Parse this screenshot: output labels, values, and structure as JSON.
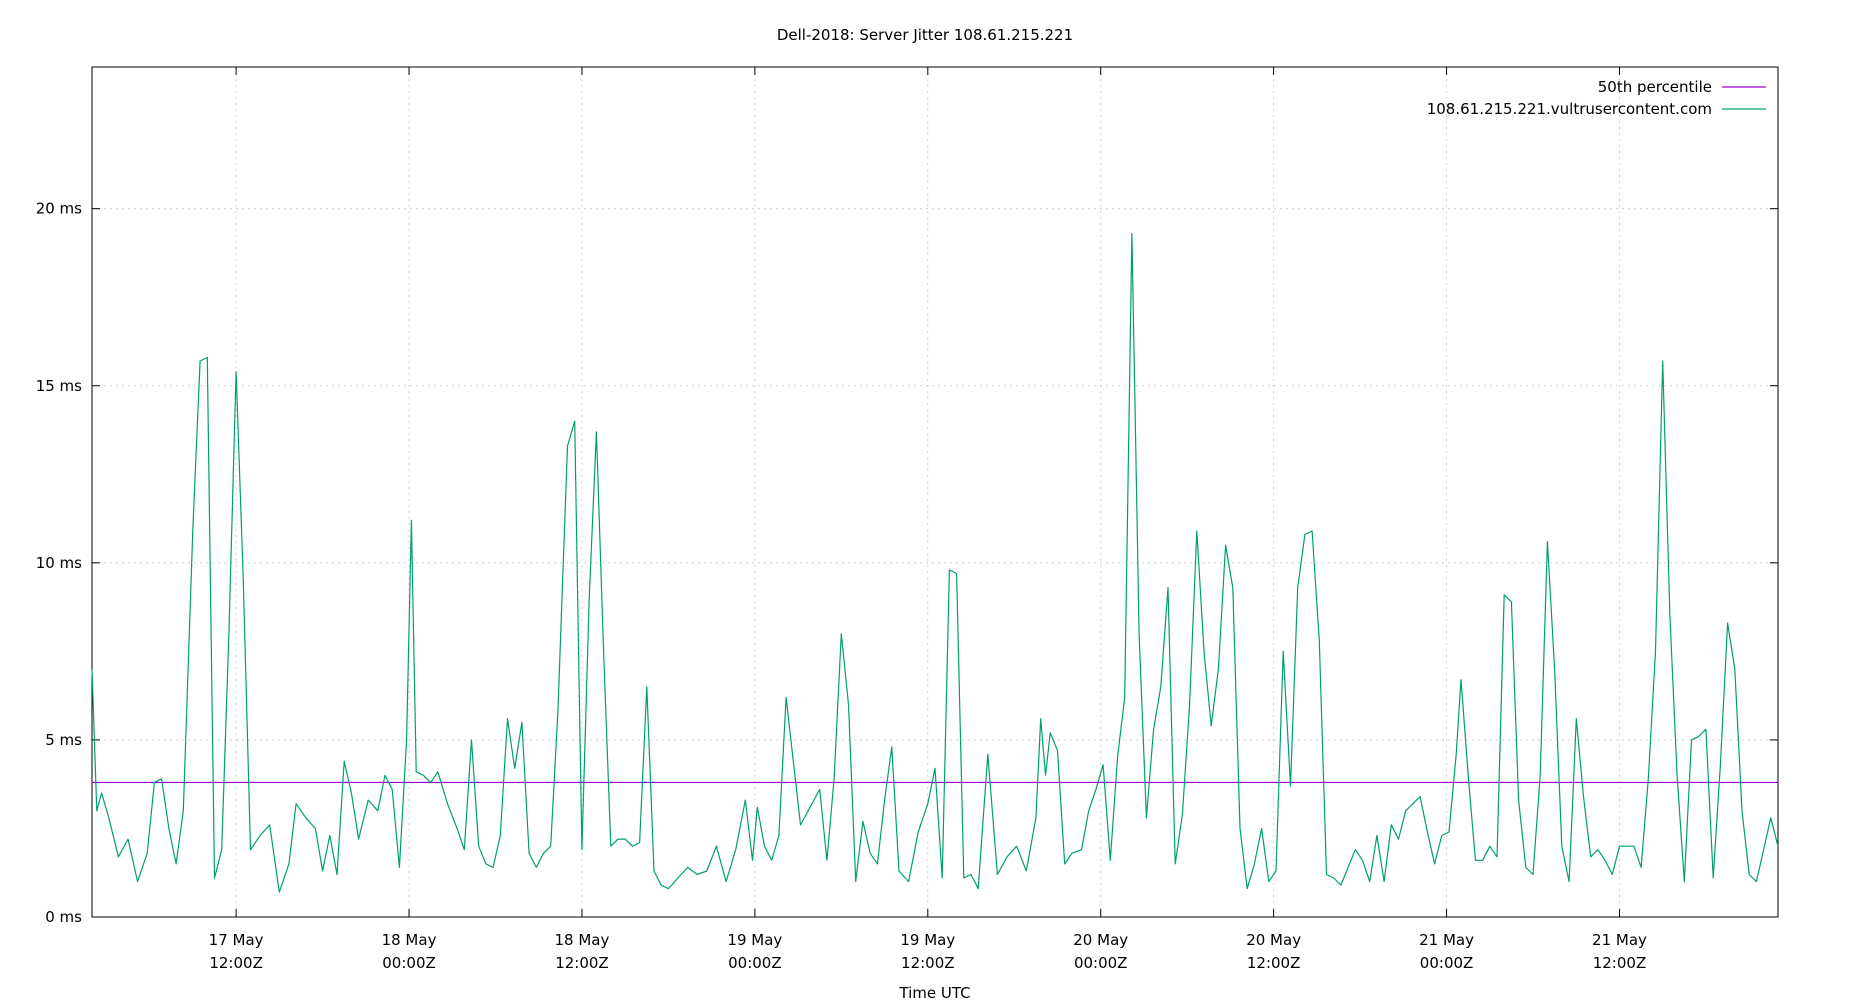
{
  "chart_data": {
    "type": "line",
    "title": "Dell-2018: Server Jitter 108.61.215.221",
    "xlabel": "Time UTC",
    "ylabel": "",
    "ylim": [
      0,
      24
    ],
    "y_unit": "ms",
    "yticks": [
      {
        "value": 0,
        "label": "0 ms"
      },
      {
        "value": 5,
        "label": "5 ms"
      },
      {
        "value": 10,
        "label": "10 ms"
      },
      {
        "value": 15,
        "label": "15 ms"
      },
      {
        "value": 20,
        "label": "20 ms"
      }
    ],
    "xlim": [
      "2018-05-17T02:00Z",
      "2018-05-21T23:00Z"
    ],
    "xticks": [
      {
        "t": "2018-05-17T12:00Z",
        "label1": "17 May",
        "label2": "12:00Z"
      },
      {
        "t": "2018-05-18T00:00Z",
        "label1": "18 May",
        "label2": "00:00Z"
      },
      {
        "t": "2018-05-18T12:00Z",
        "label1": "18 May",
        "label2": "12:00Z"
      },
      {
        "t": "2018-05-19T00:00Z",
        "label1": "19 May",
        "label2": "00:00Z"
      },
      {
        "t": "2018-05-19T12:00Z",
        "label1": "19 May",
        "label2": "12:00Z"
      },
      {
        "t": "2018-05-20T00:00Z",
        "label1": "20 May",
        "label2": "00:00Z"
      },
      {
        "t": "2018-05-20T12:00Z",
        "label1": "20 May",
        "label2": "12:00Z"
      },
      {
        "t": "2018-05-21T00:00Z",
        "label1": "21 May",
        "label2": "00:00Z"
      },
      {
        "t": "2018-05-21T12:00Z",
        "label1": "21 May",
        "label2": "12:00Z"
      }
    ],
    "grid": true,
    "legend_position": "top-right",
    "series": [
      {
        "name": "50th percentile",
        "color": "#9400d3",
        "kind": "hline",
        "value": 3.8
      },
      {
        "name": "108.61.215.221.vultrusercontent.com",
        "color": "#009e73",
        "kind": "line",
        "points": [
          [
            "2018-05-17T02:00Z",
            7.0
          ],
          [
            "2018-05-17T02:20Z",
            3.0
          ],
          [
            "2018-05-17T02:40Z",
            3.5
          ],
          [
            "2018-05-17T03:10Z",
            2.8
          ],
          [
            "2018-05-17T03:50Z",
            1.7
          ],
          [
            "2018-05-17T04:30Z",
            2.2
          ],
          [
            "2018-05-17T05:10Z",
            1.0
          ],
          [
            "2018-05-17T05:50Z",
            1.8
          ],
          [
            "2018-05-17T06:20Z",
            3.8
          ],
          [
            "2018-05-17T06:50Z",
            3.9
          ],
          [
            "2018-05-17T07:20Z",
            2.5
          ],
          [
            "2018-05-17T07:50Z",
            1.5
          ],
          [
            "2018-05-17T08:20Z",
            3.0
          ],
          [
            "2018-05-17T09:00Z",
            11.0
          ],
          [
            "2018-05-17T09:30Z",
            15.7
          ],
          [
            "2018-05-17T10:00Z",
            15.8
          ],
          [
            "2018-05-17T10:30Z",
            1.1
          ],
          [
            "2018-05-17T11:00Z",
            1.9
          ],
          [
            "2018-05-17T11:30Z",
            8.0
          ],
          [
            "2018-05-17T12:00Z",
            15.4
          ],
          [
            "2018-05-17T12:30Z",
            9.5
          ],
          [
            "2018-05-17T13:00Z",
            1.9
          ],
          [
            "2018-05-17T13:40Z",
            2.3
          ],
          [
            "2018-05-17T14:20Z",
            2.6
          ],
          [
            "2018-05-17T15:00Z",
            0.7
          ],
          [
            "2018-05-17T15:40Z",
            1.5
          ],
          [
            "2018-05-17T16:10Z",
            3.2
          ],
          [
            "2018-05-17T16:50Z",
            2.8
          ],
          [
            "2018-05-17T17:30Z",
            2.5
          ],
          [
            "2018-05-17T18:00Z",
            1.3
          ],
          [
            "2018-05-17T18:30Z",
            2.3
          ],
          [
            "2018-05-17T19:00Z",
            1.2
          ],
          [
            "2018-05-17T19:30Z",
            4.4
          ],
          [
            "2018-05-17T20:00Z",
            3.5
          ],
          [
            "2018-05-17T20:30Z",
            2.2
          ],
          [
            "2018-05-17T21:10Z",
            3.3
          ],
          [
            "2018-05-17T21:50Z",
            3.0
          ],
          [
            "2018-05-17T22:20Z",
            4.0
          ],
          [
            "2018-05-17T22:50Z",
            3.6
          ],
          [
            "2018-05-17T23:20Z",
            1.4
          ],
          [
            "2018-05-17T23:50Z",
            5.0
          ],
          [
            "2018-05-18T00:10Z",
            11.2
          ],
          [
            "2018-05-18T00:30Z",
            4.1
          ],
          [
            "2018-05-18T01:00Z",
            4.0
          ],
          [
            "2018-05-18T01:30Z",
            3.8
          ],
          [
            "2018-05-18T02:00Z",
            4.1
          ],
          [
            "2018-05-18T02:40Z",
            3.2
          ],
          [
            "2018-05-18T03:20Z",
            2.5
          ],
          [
            "2018-05-18T03:50Z",
            1.9
          ],
          [
            "2018-05-18T04:20Z",
            5.0
          ],
          [
            "2018-05-18T04:50Z",
            2.0
          ],
          [
            "2018-05-18T05:20Z",
            1.5
          ],
          [
            "2018-05-18T05:50Z",
            1.4
          ],
          [
            "2018-05-18T06:20Z",
            2.3
          ],
          [
            "2018-05-18T06:50Z",
            5.6
          ],
          [
            "2018-05-18T07:20Z",
            4.2
          ],
          [
            "2018-05-18T07:50Z",
            5.5
          ],
          [
            "2018-05-18T08:20Z",
            1.8
          ],
          [
            "2018-05-18T08:50Z",
            1.4
          ],
          [
            "2018-05-18T09:20Z",
            1.8
          ],
          [
            "2018-05-18T09:50Z",
            2.0
          ],
          [
            "2018-05-18T10:20Z",
            5.8
          ],
          [
            "2018-05-18T11:00Z",
            13.3
          ],
          [
            "2018-05-18T11:30Z",
            14.0
          ],
          [
            "2018-05-18T12:00Z",
            1.9
          ],
          [
            "2018-05-18T12:30Z",
            9.0
          ],
          [
            "2018-05-18T13:00Z",
            13.7
          ],
          [
            "2018-05-18T13:30Z",
            7.5
          ],
          [
            "2018-05-18T14:00Z",
            2.0
          ],
          [
            "2018-05-18T14:30Z",
            2.2
          ],
          [
            "2018-05-18T15:00Z",
            2.2
          ],
          [
            "2018-05-18T15:30Z",
            2.0
          ],
          [
            "2018-05-18T16:00Z",
            2.1
          ],
          [
            "2018-05-18T16:30Z",
            6.5
          ],
          [
            "2018-05-18T17:00Z",
            1.3
          ],
          [
            "2018-05-18T17:30Z",
            0.9
          ],
          [
            "2018-05-18T18:00Z",
            0.8
          ],
          [
            "2018-05-18T18:40Z",
            1.1
          ],
          [
            "2018-05-18T19:20Z",
            1.4
          ],
          [
            "2018-05-18T20:00Z",
            1.2
          ],
          [
            "2018-05-18T20:40Z",
            1.3
          ],
          [
            "2018-05-18T21:20Z",
            2.0
          ],
          [
            "2018-05-18T22:00Z",
            1.0
          ],
          [
            "2018-05-18T22:40Z",
            1.9
          ],
          [
            "2018-05-18T23:20Z",
            3.3
          ],
          [
            "2018-05-18T23:50Z",
            1.6
          ],
          [
            "2018-05-19T00:10Z",
            3.1
          ],
          [
            "2018-05-19T00:40Z",
            2.0
          ],
          [
            "2018-05-19T01:10Z",
            1.6
          ],
          [
            "2018-05-19T01:40Z",
            2.3
          ],
          [
            "2018-05-19T02:10Z",
            6.2
          ],
          [
            "2018-05-19T02:40Z",
            4.4
          ],
          [
            "2018-05-19T03:10Z",
            2.6
          ],
          [
            "2018-05-19T03:50Z",
            3.1
          ],
          [
            "2018-05-19T04:30Z",
            3.6
          ],
          [
            "2018-05-19T05:00Z",
            1.6
          ],
          [
            "2018-05-19T05:30Z",
            3.9
          ],
          [
            "2018-05-19T06:00Z",
            8.0
          ],
          [
            "2018-05-19T06:30Z",
            6.0
          ],
          [
            "2018-05-19T07:00Z",
            1.0
          ],
          [
            "2018-05-19T07:30Z",
            2.7
          ],
          [
            "2018-05-19T08:00Z",
            1.8
          ],
          [
            "2018-05-19T08:30Z",
            1.5
          ],
          [
            "2018-05-19T09:00Z",
            3.3
          ],
          [
            "2018-05-19T09:30Z",
            4.8
          ],
          [
            "2018-05-19T10:00Z",
            1.3
          ],
          [
            "2018-05-19T10:40Z",
            1.0
          ],
          [
            "2018-05-19T11:20Z",
            2.4
          ],
          [
            "2018-05-19T12:00Z",
            3.2
          ],
          [
            "2018-05-19T12:30Z",
            4.2
          ],
          [
            "2018-05-19T13:00Z",
            1.1
          ],
          [
            "2018-05-19T13:30Z",
            9.8
          ],
          [
            "2018-05-19T14:00Z",
            9.7
          ],
          [
            "2018-05-19T14:30Z",
            1.1
          ],
          [
            "2018-05-19T15:00Z",
            1.2
          ],
          [
            "2018-05-19T15:30Z",
            0.8
          ],
          [
            "2018-05-19T16:10Z",
            4.6
          ],
          [
            "2018-05-19T16:50Z",
            1.2
          ],
          [
            "2018-05-19T17:30Z",
            1.7
          ],
          [
            "2018-05-19T18:10Z",
            2.0
          ],
          [
            "2018-05-19T18:50Z",
            1.3
          ],
          [
            "2018-05-19T19:30Z",
            2.8
          ],
          [
            "2018-05-19T19:50Z",
            5.6
          ],
          [
            "2018-05-19T20:10Z",
            4.0
          ],
          [
            "2018-05-19T20:30Z",
            5.2
          ],
          [
            "2018-05-19T21:00Z",
            4.7
          ],
          [
            "2018-05-19T21:30Z",
            1.5
          ],
          [
            "2018-05-19T22:00Z",
            1.8
          ],
          [
            "2018-05-19T22:40Z",
            1.9
          ],
          [
            "2018-05-19T23:10Z",
            3.0
          ],
          [
            "2018-05-19T23:40Z",
            3.6
          ],
          [
            "2018-05-20T00:10Z",
            4.3
          ],
          [
            "2018-05-20T00:40Z",
            1.6
          ],
          [
            "2018-05-20T01:10Z",
            4.5
          ],
          [
            "2018-05-20T01:40Z",
            6.2
          ],
          [
            "2018-05-20T02:10Z",
            19.3
          ],
          [
            "2018-05-20T02:40Z",
            8.0
          ],
          [
            "2018-05-20T03:10Z",
            2.8
          ],
          [
            "2018-05-20T03:40Z",
            5.3
          ],
          [
            "2018-05-20T04:10Z",
            6.5
          ],
          [
            "2018-05-20T04:40Z",
            9.3
          ],
          [
            "2018-05-20T05:10Z",
            1.5
          ],
          [
            "2018-05-20T05:40Z",
            2.9
          ],
          [
            "2018-05-20T06:10Z",
            6.0
          ],
          [
            "2018-05-20T06:40Z",
            10.9
          ],
          [
            "2018-05-20T07:10Z",
            7.5
          ],
          [
            "2018-05-20T07:40Z",
            5.4
          ],
          [
            "2018-05-20T08:10Z",
            7.0
          ],
          [
            "2018-05-20T08:40Z",
            10.5
          ],
          [
            "2018-05-20T09:10Z",
            9.3
          ],
          [
            "2018-05-20T09:40Z",
            2.5
          ],
          [
            "2018-05-20T10:10Z",
            0.8
          ],
          [
            "2018-05-20T10:40Z",
            1.5
          ],
          [
            "2018-05-20T11:10Z",
            2.5
          ],
          [
            "2018-05-20T11:40Z",
            1.0
          ],
          [
            "2018-05-20T12:10Z",
            1.3
          ],
          [
            "2018-05-20T12:40Z",
            7.5
          ],
          [
            "2018-05-20T13:10Z",
            3.7
          ],
          [
            "2018-05-20T13:40Z",
            9.3
          ],
          [
            "2018-05-20T14:10Z",
            10.8
          ],
          [
            "2018-05-20T14:40Z",
            10.9
          ],
          [
            "2018-05-20T15:10Z",
            7.8
          ],
          [
            "2018-05-20T15:40Z",
            1.2
          ],
          [
            "2018-05-20T16:10Z",
            1.1
          ],
          [
            "2018-05-20T16:40Z",
            0.9
          ],
          [
            "2018-05-20T17:10Z",
            1.4
          ],
          [
            "2018-05-20T17:40Z",
            1.9
          ],
          [
            "2018-05-20T18:10Z",
            1.6
          ],
          [
            "2018-05-20T18:40Z",
            1.0
          ],
          [
            "2018-05-20T19:10Z",
            2.3
          ],
          [
            "2018-05-20T19:40Z",
            1.0
          ],
          [
            "2018-05-20T20:10Z",
            2.6
          ],
          [
            "2018-05-20T20:40Z",
            2.2
          ],
          [
            "2018-05-20T21:10Z",
            3.0
          ],
          [
            "2018-05-20T21:40Z",
            3.2
          ],
          [
            "2018-05-20T22:10Z",
            3.4
          ],
          [
            "2018-05-20T22:40Z",
            2.4
          ],
          [
            "2018-05-20T23:10Z",
            1.5
          ],
          [
            "2018-05-20T23:40Z",
            2.3
          ],
          [
            "2018-05-21T00:10Z",
            2.4
          ],
          [
            "2018-05-21T00:40Z",
            4.6
          ],
          [
            "2018-05-21T01:00Z",
            6.7
          ],
          [
            "2018-05-21T01:30Z",
            4.0
          ],
          [
            "2018-05-21T02:00Z",
            1.6
          ],
          [
            "2018-05-21T02:30Z",
            1.6
          ],
          [
            "2018-05-21T03:00Z",
            2.0
          ],
          [
            "2018-05-21T03:30Z",
            1.7
          ],
          [
            "2018-05-21T04:00Z",
            9.1
          ],
          [
            "2018-05-21T04:30Z",
            8.9
          ],
          [
            "2018-05-21T05:00Z",
            3.3
          ],
          [
            "2018-05-21T05:30Z",
            1.4
          ],
          [
            "2018-05-21T06:00Z",
            1.2
          ],
          [
            "2018-05-21T06:30Z",
            4.0
          ],
          [
            "2018-05-21T07:00Z",
            10.6
          ],
          [
            "2018-05-21T07:30Z",
            7.0
          ],
          [
            "2018-05-21T08:00Z",
            2.0
          ],
          [
            "2018-05-21T08:30Z",
            1.0
          ],
          [
            "2018-05-21T09:00Z",
            5.6
          ],
          [
            "2018-05-21T09:30Z",
            3.4
          ],
          [
            "2018-05-21T10:00Z",
            1.7
          ],
          [
            "2018-05-21T10:30Z",
            1.9
          ],
          [
            "2018-05-21T11:00Z",
            1.6
          ],
          [
            "2018-05-21T11:30Z",
            1.2
          ],
          [
            "2018-05-21T12:00Z",
            2.0
          ],
          [
            "2018-05-21T12:30Z",
            2.0
          ],
          [
            "2018-05-21T13:00Z",
            2.0
          ],
          [
            "2018-05-21T13:30Z",
            1.4
          ],
          [
            "2018-05-21T14:00Z",
            3.9
          ],
          [
            "2018-05-21T14:30Z",
            7.5
          ],
          [
            "2018-05-21T15:00Z",
            15.7
          ],
          [
            "2018-05-21T15:30Z",
            8.5
          ],
          [
            "2018-05-21T16:00Z",
            4.0
          ],
          [
            "2018-05-21T16:30Z",
            1.0
          ],
          [
            "2018-05-21T17:00Z",
            5.0
          ],
          [
            "2018-05-21T17:30Z",
            5.1
          ],
          [
            "2018-05-21T18:00Z",
            5.3
          ],
          [
            "2018-05-21T18:30Z",
            1.1
          ],
          [
            "2018-05-21T19:00Z",
            4.3
          ],
          [
            "2018-05-21T19:30Z",
            8.3
          ],
          [
            "2018-05-21T20:00Z",
            7.0
          ],
          [
            "2018-05-21T20:30Z",
            3.0
          ],
          [
            "2018-05-21T21:00Z",
            1.2
          ],
          [
            "2018-05-21T21:30Z",
            1.0
          ],
          [
            "2018-05-21T22:00Z",
            1.9
          ],
          [
            "2018-05-21T22:30Z",
            2.8
          ],
          [
            "2018-05-21T23:00Z",
            2.0
          ]
        ]
      }
    ]
  }
}
